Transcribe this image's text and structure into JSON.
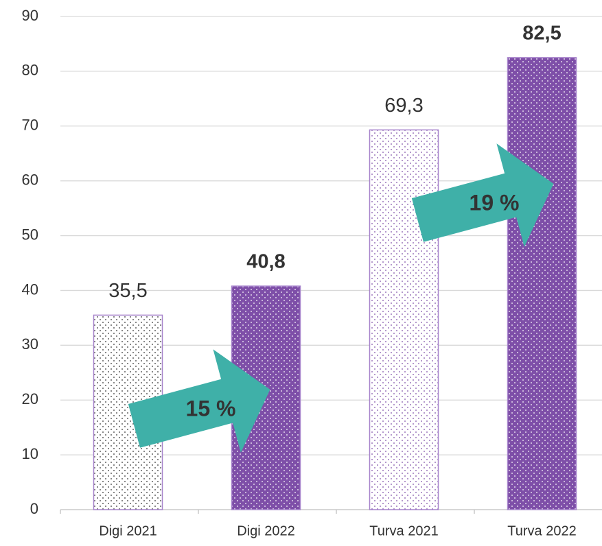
{
  "chart_data": {
    "type": "bar",
    "categories": [
      "Digi 2021",
      "Digi 2022",
      "Turva 2021",
      "Turva 2022"
    ],
    "values": [
      35.5,
      40.8,
      69.3,
      82.5
    ],
    "value_labels": [
      "35,5",
      "40,8",
      "69,3",
      "82,5"
    ],
    "label_bold": [
      false,
      true,
      false,
      true
    ],
    "colors": [
      "#ffffff",
      "#7e4fa8",
      "#ffffff",
      "#7e4fa8"
    ],
    "dot_colors": [
      "#333333",
      "#ffffff",
      "#7e4fa8",
      "#ffffff"
    ],
    "ylim": [
      0,
      90
    ],
    "yticks": [
      0,
      10,
      20,
      30,
      40,
      50,
      60,
      70,
      80,
      90
    ],
    "grid": true,
    "annotations": [
      "15 %",
      "19 %"
    ],
    "annotation_color": "#3fb0a8"
  }
}
